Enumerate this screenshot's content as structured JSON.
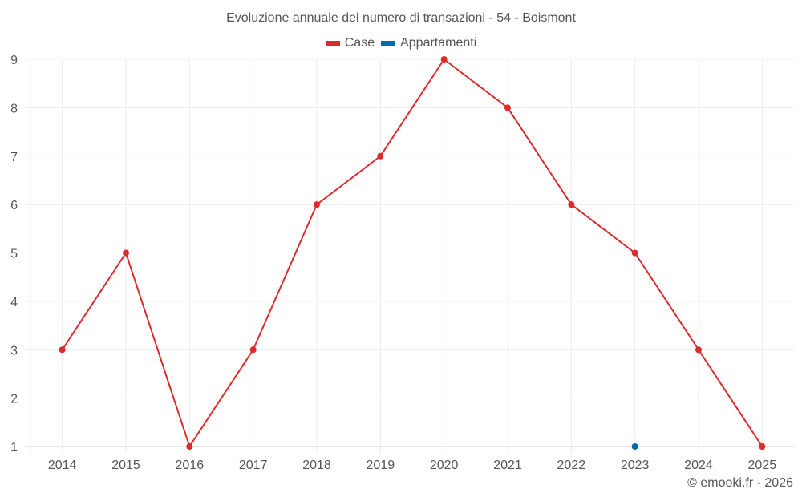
{
  "chart": {
    "title": "Evoluzione annuale del numero di transazioni - 54 - Boismont",
    "credit": "© emooki.fr - 2026",
    "legend": [
      {
        "label": "Case",
        "color": "#dd2a2a"
      },
      {
        "label": "Appartamenti",
        "color": "#0868a8"
      }
    ]
  },
  "chart_data": {
    "type": "line",
    "title": "Evoluzione annuale del numero di transazioni - 54 - Boismont",
    "xlabel": "",
    "ylabel": "",
    "categories": [
      "2014",
      "2015",
      "2016",
      "2017",
      "2018",
      "2019",
      "2020",
      "2021",
      "2022",
      "2023",
      "2024",
      "2025"
    ],
    "series": [
      {
        "name": "Case",
        "color": "#dd2a2a",
        "values": [
          3,
          5,
          1,
          3,
          6,
          7,
          9,
          8,
          6,
          5,
          3,
          1
        ]
      },
      {
        "name": "Appartamenti",
        "color": "#0868a8",
        "values": [
          null,
          null,
          null,
          null,
          null,
          null,
          null,
          null,
          null,
          1,
          null,
          null
        ]
      }
    ],
    "ylim": [
      1,
      9
    ],
    "yticks": [
      1,
      2,
      3,
      4,
      5,
      6,
      7,
      8,
      9
    ],
    "grid": true,
    "legend_position": "top"
  }
}
